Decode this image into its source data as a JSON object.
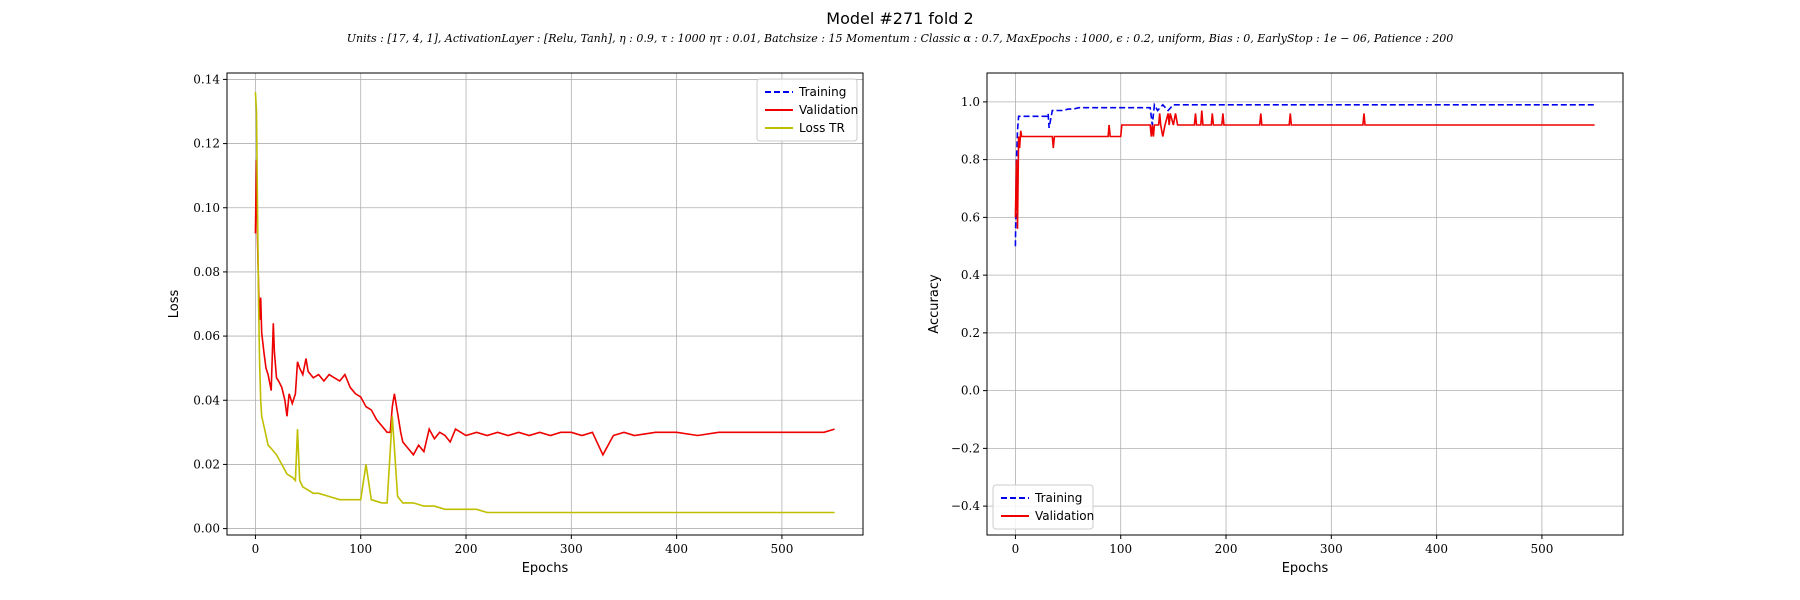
{
  "figure": {
    "title": "Model #271 fold 2",
    "subtitle": "Units : [17, 4, 1], ActivationLayer : [Relu, Tanh], η : 0.9, τ : 1000 ητ : 0.01, Batchsize : 15 Momentum : Classic α : 0.7, MaxEpochs : 1000, ϵ : 0.2, uniform, Bias : 0, EarlyStop : 1e − 06, Patience : 200"
  },
  "chart_data": [
    {
      "type": "line",
      "xlabel": "Epochs",
      "ylabel": "Loss",
      "xlim": [
        -27,
        577
      ],
      "ylim": [
        -0.002,
        0.142
      ],
      "xticks": [
        0,
        100,
        200,
        300,
        400,
        500
      ],
      "yticks": [
        0.0,
        0.02,
        0.04,
        0.06,
        0.08,
        0.1,
        0.12,
        0.14
      ],
      "ytick_labels": [
        "0.00",
        "0.02",
        "0.04",
        "0.06",
        "0.08",
        "0.10",
        "0.12",
        "0.14"
      ],
      "grid": true,
      "legend_position": "top-right",
      "series": [
        {
          "name": "Training",
          "color": "#0000ee",
          "dash": "dashed",
          "x": [],
          "y": []
        },
        {
          "name": "Validation",
          "color": "#ee0000",
          "dash": "solid",
          "x": [
            0,
            1,
            2,
            3,
            4,
            5,
            6,
            8,
            10,
            12,
            15,
            17,
            18,
            20,
            22,
            25,
            28,
            30,
            32,
            35,
            38,
            40,
            42,
            45,
            48,
            50,
            55,
            60,
            65,
            70,
            75,
            80,
            85,
            90,
            95,
            100,
            105,
            110,
            115,
            120,
            125,
            128,
            130,
            132,
            135,
            138,
            140,
            145,
            150,
            155,
            160,
            165,
            170,
            175,
            180,
            185,
            190,
            195,
            200,
            210,
            220,
            230,
            240,
            250,
            260,
            270,
            280,
            290,
            300,
            310,
            320,
            330,
            340,
            350,
            360,
            380,
            400,
            420,
            440,
            460,
            480,
            500,
            520,
            540,
            550
          ],
          "y": [
            0.092,
            0.115,
            0.09,
            0.075,
            0.065,
            0.072,
            0.061,
            0.055,
            0.05,
            0.048,
            0.043,
            0.064,
            0.055,
            0.047,
            0.046,
            0.044,
            0.04,
            0.035,
            0.042,
            0.039,
            0.042,
            0.052,
            0.05,
            0.048,
            0.053,
            0.049,
            0.047,
            0.048,
            0.046,
            0.048,
            0.047,
            0.046,
            0.048,
            0.044,
            0.042,
            0.041,
            0.038,
            0.037,
            0.034,
            0.032,
            0.03,
            0.03,
            0.038,
            0.042,
            0.036,
            0.03,
            0.027,
            0.025,
            0.023,
            0.026,
            0.024,
            0.031,
            0.028,
            0.03,
            0.029,
            0.027,
            0.031,
            0.03,
            0.029,
            0.03,
            0.029,
            0.03,
            0.029,
            0.03,
            0.029,
            0.03,
            0.029,
            0.03,
            0.03,
            0.029,
            0.03,
            0.023,
            0.029,
            0.03,
            0.029,
            0.03,
            0.03,
            0.029,
            0.03,
            0.03,
            0.03,
            0.03,
            0.03,
            0.03,
            0.031
          ]
        },
        {
          "name": "Loss TR",
          "color": "#bfbf00",
          "dash": "solid",
          "x": [
            0,
            1,
            2,
            3,
            4,
            5,
            6,
            8,
            10,
            12,
            15,
            20,
            25,
            30,
            35,
            38,
            40,
            42,
            45,
            50,
            55,
            60,
            70,
            80,
            90,
            100,
            105,
            110,
            120,
            125,
            130,
            135,
            140,
            150,
            160,
            170,
            180,
            190,
            200,
            210,
            220,
            230,
            240,
            250,
            260,
            270,
            280,
            290,
            300,
            310,
            320,
            330,
            340,
            360,
            380,
            400,
            420,
            440,
            460,
            480,
            500,
            520,
            540,
            550
          ],
          "y": [
            0.136,
            0.13,
            0.1,
            0.07,
            0.052,
            0.04,
            0.035,
            0.032,
            0.029,
            0.026,
            0.025,
            0.023,
            0.02,
            0.017,
            0.016,
            0.015,
            0.031,
            0.015,
            0.013,
            0.012,
            0.011,
            0.011,
            0.01,
            0.009,
            0.009,
            0.009,
            0.02,
            0.009,
            0.008,
            0.008,
            0.035,
            0.01,
            0.008,
            0.008,
            0.007,
            0.007,
            0.006,
            0.006,
            0.006,
            0.006,
            0.005,
            0.005,
            0.005,
            0.005,
            0.005,
            0.005,
            0.005,
            0.005,
            0.005,
            0.005,
            0.005,
            0.005,
            0.005,
            0.005,
            0.005,
            0.005,
            0.005,
            0.005,
            0.005,
            0.005,
            0.005,
            0.005,
            0.005,
            0.005
          ]
        }
      ]
    },
    {
      "type": "line",
      "xlabel": "Epochs",
      "ylabel": "Accuracy",
      "xlim": [
        -27,
        577
      ],
      "ylim": [
        -0.5,
        1.1
      ],
      "xticks": [
        0,
        100,
        200,
        300,
        400,
        500
      ],
      "yticks": [
        -0.4,
        -0.2,
        0.0,
        0.2,
        0.4,
        0.6,
        0.8,
        1.0
      ],
      "ytick_labels": [
        "−0.4",
        "−0.2",
        "0.0",
        "0.2",
        "0.4",
        "0.6",
        "0.8",
        "1.0"
      ],
      "grid": true,
      "legend_position": "lower-left",
      "series": [
        {
          "name": "Training",
          "color": "#0000ee",
          "dash": "dashed",
          "x": [
            0,
            1,
            2,
            3,
            30,
            31,
            32,
            35,
            40,
            45,
            50,
            55,
            60,
            100,
            128,
            130,
            132,
            135,
            140,
            145,
            150,
            155,
            550
          ],
          "y": [
            0.5,
            0.8,
            0.9,
            0.95,
            0.95,
            0.96,
            0.91,
            0.97,
            0.97,
            0.97,
            0.975,
            0.975,
            0.98,
            0.98,
            0.98,
            0.92,
            0.99,
            0.97,
            0.99,
            0.97,
            0.99,
            0.99,
            0.99
          ]
        },
        {
          "name": "Validation",
          "color": "#ee0000",
          "dash": "solid",
          "x": [
            0,
            1,
            2,
            3,
            4,
            5,
            6,
            35,
            36,
            37,
            38,
            40,
            88,
            89,
            90,
            100,
            101,
            102,
            128,
            129,
            130,
            131,
            132,
            136,
            137,
            138,
            140,
            142,
            145,
            146,
            147,
            150,
            152,
            154,
            170,
            171,
            172,
            176,
            177,
            178,
            186,
            187,
            188,
            196,
            197,
            198,
            232,
            233,
            234,
            260,
            261,
            262,
            330,
            331,
            332,
            550
          ],
          "y": [
            0.6,
            0.8,
            0.56,
            0.88,
            0.84,
            0.9,
            0.88,
            0.88,
            0.84,
            0.88,
            0.88,
            0.88,
            0.88,
            0.92,
            0.88,
            0.88,
            0.92,
            0.92,
            0.92,
            0.88,
            0.92,
            0.88,
            0.92,
            0.92,
            0.96,
            0.92,
            0.88,
            0.92,
            0.96,
            0.92,
            0.96,
            0.92,
            0.96,
            0.92,
            0.92,
            0.96,
            0.92,
            0.92,
            0.97,
            0.92,
            0.92,
            0.96,
            0.92,
            0.92,
            0.96,
            0.92,
            0.92,
            0.96,
            0.92,
            0.92,
            0.96,
            0.92,
            0.92,
            0.96,
            0.92,
            0.92
          ]
        }
      ]
    }
  ]
}
